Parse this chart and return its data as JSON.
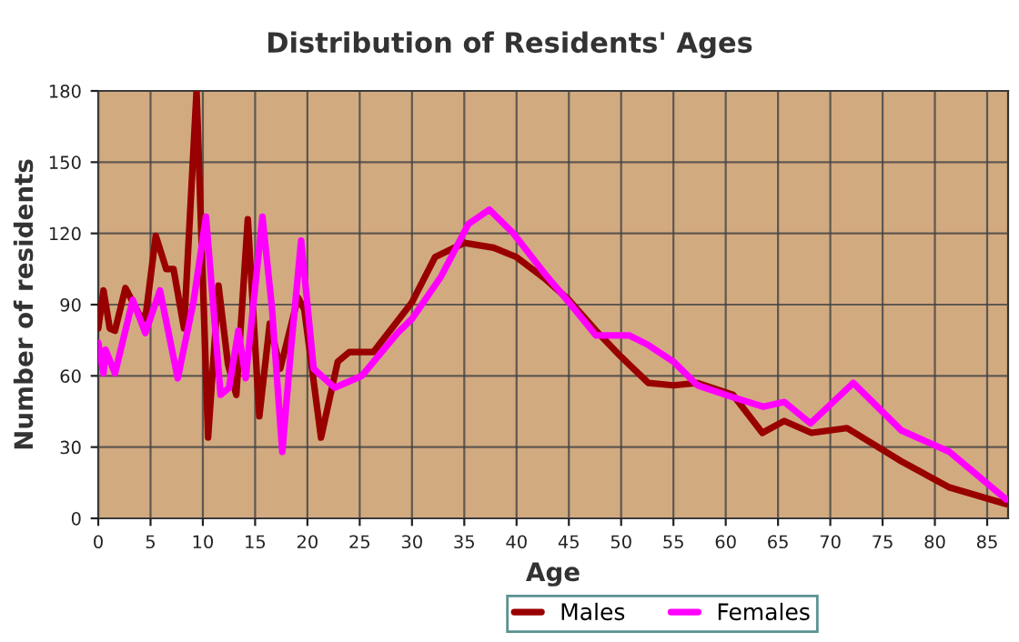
{
  "chart_data": {
    "type": "line",
    "title": "Distribution of Residents' Ages",
    "xlabel": "Age",
    "ylabel": "Number of residents",
    "xlim": [
      0,
      87
    ],
    "xticks": [
      0,
      5,
      10,
      15,
      20,
      25,
      30,
      35,
      40,
      45,
      50,
      55,
      60,
      65,
      70,
      75,
      80,
      85
    ],
    "ylim": [
      0,
      180
    ],
    "yticks": [
      0,
      30,
      60,
      90,
      120,
      150,
      180
    ],
    "grid": true,
    "legend": "bottom",
    "series": [
      {
        "name": "Males",
        "color": "#990000",
        "x": [
          0,
          0.5,
          1.1,
          1.6,
          2.6,
          3.9,
          4.5,
          5.5,
          6.5,
          7.2,
          8.2,
          9.4,
          10.5,
          11.5,
          12.4,
          13.2,
          14.3,
          15.4,
          16.4,
          17.4,
          19.1,
          19.7,
          21.3,
          22.9,
          24,
          26.3,
          28.6,
          30,
          32.2,
          35,
          37.8,
          40,
          42.7,
          45,
          47.6,
          50,
          52.6,
          55,
          57.3,
          60.7,
          63.5,
          65.6,
          68.2,
          71.6,
          76.8,
          81.4,
          86.8
        ],
        "values": [
          80,
          96,
          80,
          79,
          97,
          86,
          84,
          119,
          105,
          105,
          80,
          180,
          34,
          98,
          65,
          52,
          126,
          43,
          82,
          63,
          93,
          88,
          34,
          66,
          70,
          70,
          83,
          91,
          110,
          116,
          114,
          110,
          101,
          92,
          79,
          68,
          57,
          56,
          57,
          52,
          36,
          41,
          36,
          38,
          24,
          13,
          6
        ]
      },
      {
        "name": "Females",
        "color": "#ff00ff",
        "x": [
          0,
          0.5,
          0.7,
          1.6,
          3.3,
          4.5,
          5.9,
          7.6,
          9.1,
          10.3,
          11.7,
          12.5,
          13.4,
          14.1,
          15.7,
          16.6,
          17.6,
          18.4,
          19.4,
          20.6,
          22.6,
          25.2,
          28.6,
          30,
          32.8,
          35.4,
          37.4,
          39.7,
          42.7,
          45,
          47.6,
          50.8,
          52.6,
          55,
          57.3,
          60.7,
          63.6,
          65.6,
          68.1,
          72.2,
          76.8,
          81.4,
          86.8
        ],
        "values": [
          74,
          61,
          71,
          61,
          92,
          78,
          96,
          59,
          91,
          127,
          52,
          55,
          79,
          59,
          127,
          89,
          28,
          70,
          117,
          63,
          55,
          60,
          78,
          84,
          102,
          124,
          130,
          120,
          103,
          91,
          77,
          77,
          73,
          66,
          56,
          51,
          47,
          49,
          40,
          57,
          37,
          28,
          8
        ]
      }
    ]
  }
}
